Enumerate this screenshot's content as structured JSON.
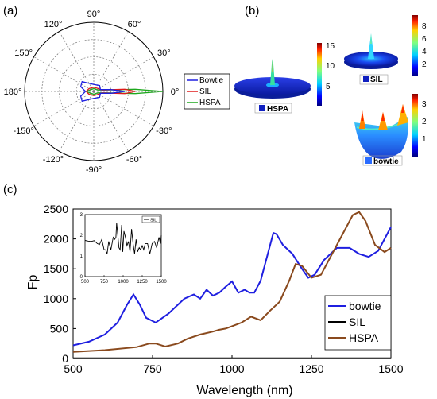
{
  "panel_labels": {
    "a": "(a)",
    "b": "(b)",
    "c": "(c)"
  },
  "colors": {
    "bowtie": "#1f1fe0",
    "sil": "#e01a1a",
    "hspa": "#1ea81e",
    "hspa_c": "#8a4a1e",
    "sil_c": "#000000"
  },
  "polar": {
    "angle_labels": [
      "0°",
      "30°",
      "60°",
      "90°",
      "120°",
      "150°",
      "180°",
      "-150°",
      "-120°",
      "-90°",
      "-60°",
      "-30°"
    ],
    "legend": [
      "Bowtie",
      "SIL",
      "HSPA"
    ]
  },
  "surfaces": {
    "hspa": {
      "label": "HSPA",
      "colorbar_ticks": [
        "15",
        "10",
        "5"
      ]
    },
    "sil": {
      "label": "SIL",
      "colorbar_ticks": [
        "8",
        "6",
        "4",
        "2"
      ]
    },
    "bowtie": {
      "label": "bowtie",
      "colorbar_ticks": [
        "3",
        "2",
        "1"
      ]
    }
  },
  "chart_data": {
    "type": "line",
    "xlabel": "Wavelength (nm)",
    "ylabel": "Fp",
    "xlim": [
      500,
      1500
    ],
    "ylim": [
      0,
      2500
    ],
    "x_ticks": [
      "500",
      "750",
      "1000",
      "1250",
      "1500"
    ],
    "y_ticks": [
      "0",
      "500",
      "1000",
      "1500",
      "2000",
      "2500"
    ],
    "legend": [
      "bowtie",
      "SIL",
      "HSPA"
    ],
    "series": [
      {
        "name": "bowtie",
        "x": [
          500,
          550,
          600,
          640,
          670,
          690,
          710,
          730,
          760,
          800,
          850,
          880,
          900,
          920,
          940,
          960,
          980,
          1000,
          1020,
          1040,
          1055,
          1070,
          1090,
          1110,
          1130,
          1140,
          1160,
          1190,
          1220,
          1240,
          1260,
          1290,
          1330,
          1370,
          1400,
          1430,
          1460,
          1480,
          1500
        ],
        "y": [
          220,
          280,
          400,
          600,
          900,
          1070,
          900,
          680,
          600,
          750,
          1000,
          1070,
          1000,
          1150,
          1050,
          1100,
          1200,
          1290,
          1100,
          1150,
          1100,
          1100,
          1300,
          1700,
          2100,
          2080,
          1900,
          1750,
          1500,
          1350,
          1400,
          1650,
          1850,
          1850,
          1750,
          1700,
          1800,
          2000,
          2200
        ]
      },
      {
        "name": "SIL",
        "x": [
          500,
          750,
          1000,
          1250,
          1500
        ],
        "y": [
          2,
          2,
          2,
          2,
          2
        ]
      },
      {
        "name": "HSPA",
        "x": [
          500,
          600,
          700,
          740,
          760,
          790,
          830,
          860,
          900,
          940,
          960,
          980,
          1000,
          1030,
          1060,
          1090,
          1120,
          1150,
          1180,
          1200,
          1220,
          1250,
          1280,
          1320,
          1350,
          1380,
          1400,
          1420,
          1450,
          1480,
          1500
        ],
        "y": [
          110,
          140,
          190,
          250,
          250,
          200,
          250,
          330,
          400,
          450,
          480,
          500,
          540,
          600,
          700,
          640,
          800,
          950,
          1300,
          1580,
          1550,
          1350,
          1400,
          1800,
          2100,
          2400,
          2450,
          2300,
          1900,
          1780,
          1850
        ]
      }
    ],
    "inset": {
      "legend": "SIL",
      "xlim": [
        500,
        1500
      ],
      "ylim": [
        0,
        3
      ],
      "x_ticks": [
        "500",
        "750",
        "1000",
        "1250",
        "1500"
      ],
      "y_ticks": [
        "0",
        "1",
        "2",
        "3"
      ],
      "x": [
        500,
        540,
        580,
        620,
        660,
        690,
        720,
        750,
        770,
        790,
        810,
        840,
        870,
        890,
        905,
        915,
        930,
        945,
        960,
        980,
        995,
        1010,
        1030,
        1050,
        1070,
        1090,
        1110,
        1130,
        1150,
        1170,
        1190,
        1210,
        1230,
        1250,
        1270,
        1290,
        1320,
        1350,
        1380,
        1410,
        1440,
        1470,
        1490,
        1500
      ],
      "y": [
        1.75,
        1.72,
        1.7,
        1.74,
        1.6,
        1.55,
        1.8,
        1.3,
        1.3,
        1.1,
        1.7,
        1.3,
        1.9,
        1.8,
        1.9,
        2.6,
        2.0,
        1.4,
        1.3,
        2.5,
        1.2,
        2.2,
        1.9,
        1.5,
        1.7,
        1.2,
        2.3,
        1.6,
        1.1,
        1.8,
        1.2,
        1.4,
        1.3,
        1.5,
        1.3,
        1.6,
        1.6,
        1.1,
        1.6,
        1.7,
        1.4,
        1.9,
        1.6,
        2.0
      ]
    }
  }
}
